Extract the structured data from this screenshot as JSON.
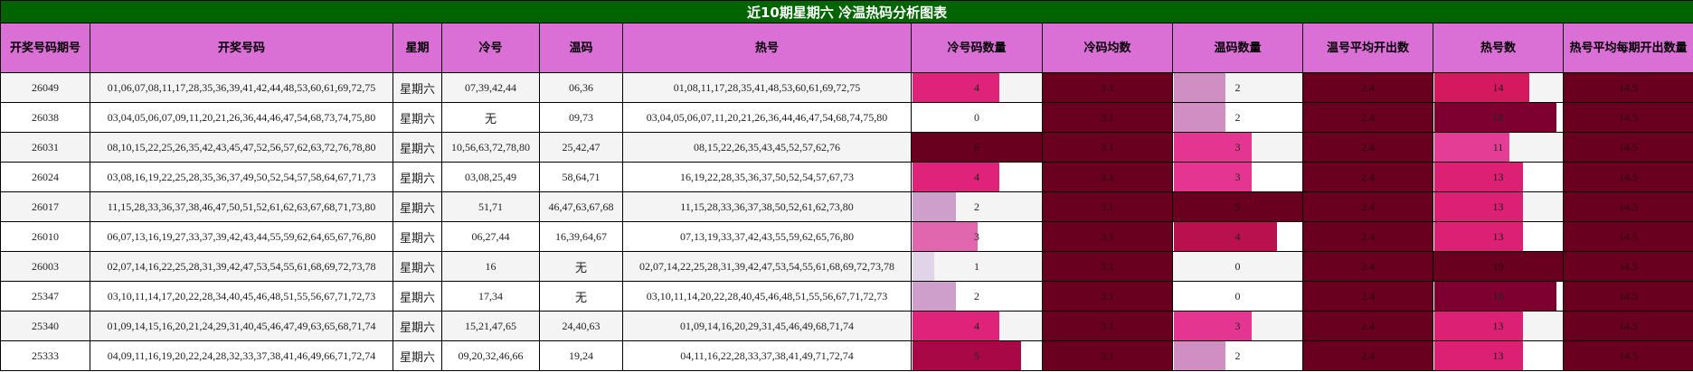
{
  "title": "近10期星期六 冷温热码分析图表",
  "columns": [
    "开奖号码期号",
    "开奖号码",
    "星期",
    "冷号",
    "温码",
    "热号",
    "冷号码数量",
    "冷码均数",
    "温码数量",
    "温号平均开出数",
    "热号数",
    "热号平均每期开出数量"
  ],
  "colors": {
    "title_bg": "#006400",
    "header_bg": "#da70d6",
    "dark_cell": "#6a0020"
  },
  "rows": [
    {
      "issue": "26049",
      "numbers": "01,06,07,08,11,17,28,35,36,39,41,42,44,48,53,60,61,69,72,75",
      "weekday": "星期六",
      "cold": "07,39,42,44",
      "warm": "06,36",
      "hot": "01,08,11,17,28,35,41,48,53,60,61,69,72,75",
      "cold_count": "4",
      "cold_avg": "3.1",
      "warm_count": "2",
      "warm_avg": "2.4",
      "hot_count": "14",
      "hot_avg": "14.5",
      "cold_color": "#e0237a",
      "warm_color": "#cf8fc2",
      "hot_color": "#d4195f"
    },
    {
      "issue": "26038",
      "numbers": "03,04,05,06,07,09,11,20,21,26,36,44,46,47,54,68,73,74,75,80",
      "weekday": "星期六",
      "cold": "无",
      "warm": "09,73",
      "hot": "03,04,05,06,07,11,20,21,26,36,44,46,47,54,68,74,75,80",
      "cold_count": "0",
      "cold_avg": "3.1",
      "warm_count": "2",
      "warm_avg": "2.4",
      "hot_count": "18",
      "hot_avg": "14.5",
      "cold_color": "#ffffff",
      "warm_color": "#cf8fc2",
      "hot_color": "#7d0030"
    },
    {
      "issue": "26031",
      "numbers": "08,10,15,22,25,26,35,42,43,45,47,52,56,57,62,63,72,76,78,80",
      "weekday": "星期六",
      "cold": "10,56,63,72,78,80",
      "warm": "25,42,47",
      "hot": "08,15,22,26,35,43,45,52,57,62,76",
      "cold_count": "6",
      "cold_avg": "3.1",
      "warm_count": "3",
      "warm_avg": "2.4",
      "hot_count": "11",
      "hot_avg": "14.5",
      "cold_color": "#6a0020",
      "warm_color": "#e43690",
      "hot_color": "#e43d95"
    },
    {
      "issue": "26024",
      "numbers": "03,08,16,19,22,25,28,35,36,37,49,50,52,54,57,58,64,67,71,73",
      "weekday": "星期六",
      "cold": "03,08,25,49",
      "warm": "58,64,71",
      "hot": "16,19,22,28,35,36,37,50,52,54,57,67,73",
      "cold_count": "4",
      "cold_avg": "3.1",
      "warm_count": "3",
      "warm_avg": "2.4",
      "hot_count": "13",
      "hot_avg": "14.5",
      "cold_color": "#e0237a",
      "warm_color": "#e43690",
      "hot_color": "#dc2073"
    },
    {
      "issue": "26017",
      "numbers": "11,15,28,33,36,37,38,46,47,50,51,52,61,62,63,67,68,71,73,80",
      "weekday": "星期六",
      "cold": "51,71",
      "warm": "46,47,63,67,68",
      "hot": "11,15,28,33,36,37,38,50,52,61,62,73,80",
      "cold_count": "2",
      "cold_avg": "3.1",
      "warm_count": "5",
      "warm_avg": "2.4",
      "hot_count": "13",
      "hot_avg": "14.5",
      "cold_color": "#cf9fcc",
      "warm_color": "#6a0020",
      "hot_color": "#dc2073"
    },
    {
      "issue": "26010",
      "numbers": "06,07,13,16,19,27,33,37,39,42,43,44,55,59,62,64,65,67,76,80",
      "weekday": "星期六",
      "cold": "06,27,44",
      "warm": "16,39,64,67",
      "hot": "07,13,19,33,37,42,43,55,59,62,65,76,80",
      "cold_count": "3",
      "cold_avg": "3.1",
      "warm_count": "4",
      "warm_avg": "2.4",
      "hot_count": "13",
      "hot_avg": "14.5",
      "cold_color": "#e066ae",
      "warm_color": "#b9104e",
      "hot_color": "#dc2073"
    },
    {
      "issue": "26003",
      "numbers": "02,07,14,16,22,25,28,31,39,42,47,53,54,55,61,68,69,72,73,78",
      "weekday": "星期六",
      "cold": "16",
      "warm": "无",
      "hot": "02,07,14,22,25,28,31,39,42,47,53,54,55,61,68,69,72,73,78",
      "cold_count": "1",
      "cold_avg": "3.1",
      "warm_count": "0",
      "warm_avg": "2.4",
      "hot_count": "19",
      "hot_avg": "14.5",
      "cold_color": "#e2d4e8",
      "warm_color": "#ffffff",
      "hot_color": "#6a0020"
    },
    {
      "issue": "25347",
      "numbers": "03,10,11,14,17,20,22,28,34,40,45,46,48,51,55,56,67,71,72,73",
      "weekday": "星期六",
      "cold": "17,34",
      "warm": "无",
      "hot": "03,10,11,14,20,22,28,40,45,46,48,51,55,56,67,71,72,73",
      "cold_count": "2",
      "cold_avg": "3.1",
      "warm_count": "0",
      "warm_avg": "2.4",
      "hot_count": "18",
      "hot_avg": "14.5",
      "cold_color": "#cf9fcc",
      "warm_color": "#ffffff",
      "hot_color": "#7d0030"
    },
    {
      "issue": "25340",
      "numbers": "01,09,14,15,16,20,21,24,29,31,40,45,46,47,49,63,65,68,71,74",
      "weekday": "星期六",
      "cold": "15,21,47,65",
      "warm": "24,40,63",
      "hot": "01,09,14,16,20,29,31,45,46,49,68,71,74",
      "cold_count": "4",
      "cold_avg": "3.1",
      "warm_count": "3",
      "warm_avg": "2.4",
      "hot_count": "13",
      "hot_avg": "14.5",
      "cold_color": "#e0237a",
      "warm_color": "#e43690",
      "hot_color": "#dc2073"
    },
    {
      "issue": "25333",
      "numbers": "04,09,11,16,19,20,22,24,28,32,33,37,38,41,46,49,66,71,72,74",
      "weekday": "星期六",
      "cold": "09,20,32,46,66",
      "warm": "19,24",
      "hot": "04,11,16,22,28,33,37,38,41,49,71,72,74",
      "cold_count": "5",
      "cold_avg": "3.1",
      "warm_count": "2",
      "warm_avg": "2.4",
      "hot_count": "13",
      "hot_avg": "14.5",
      "cold_color": "#a80845",
      "warm_color": "#cf8fc2",
      "hot_color": "#dc2073"
    }
  ]
}
